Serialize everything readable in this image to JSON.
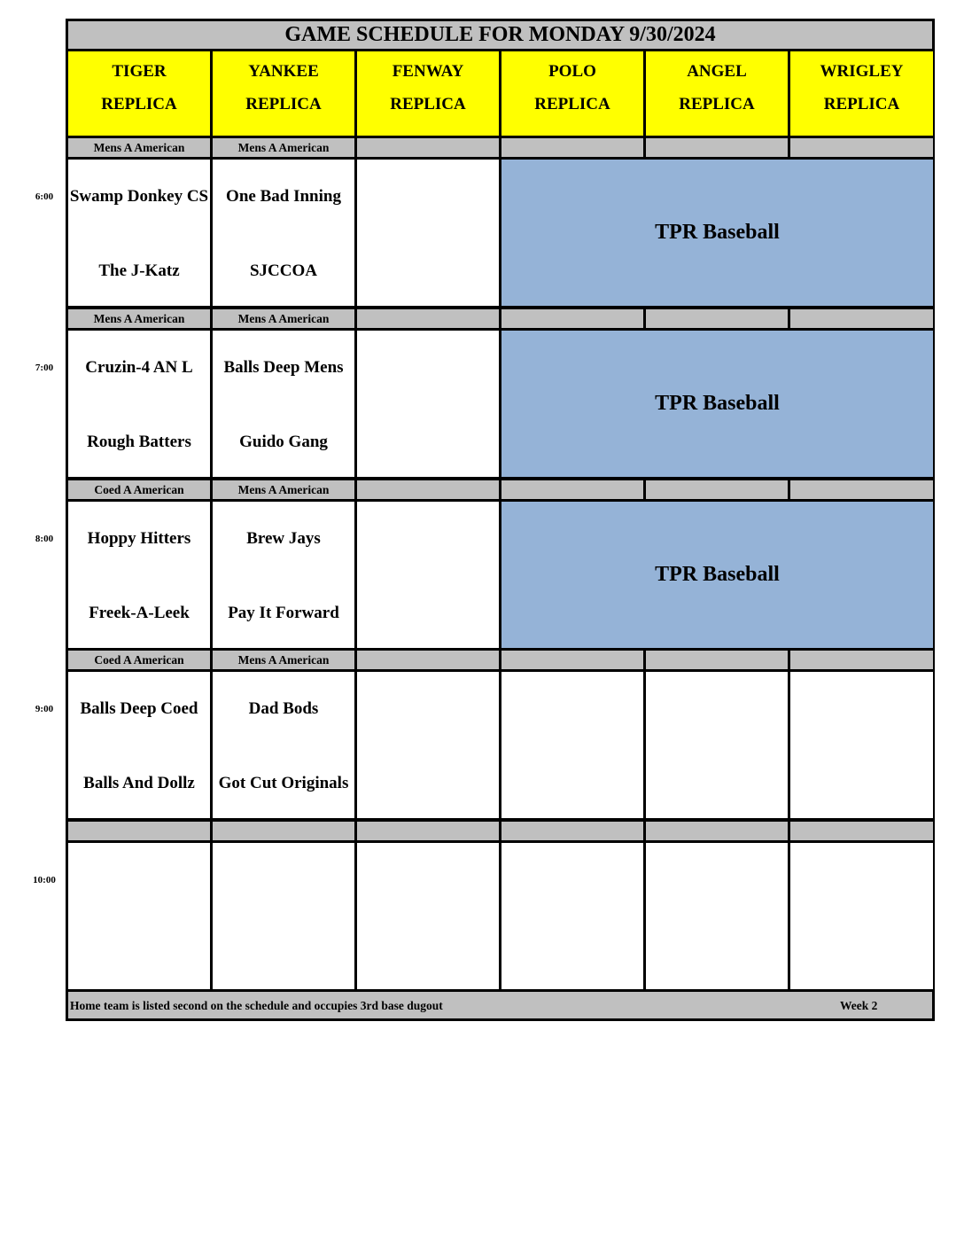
{
  "title": "GAME SCHEDULE FOR MONDAY 9/30/2024",
  "fields": [
    {
      "name": "TIGER",
      "sub": "REPLICA"
    },
    {
      "name": "YANKEE",
      "sub": "REPLICA"
    },
    {
      "name": "FENWAY",
      "sub": "REPLICA"
    },
    {
      "name": "POLO",
      "sub": "REPLICA"
    },
    {
      "name": "ANGEL",
      "sub": "REPLICA"
    },
    {
      "name": "WRIGLEY",
      "sub": "REPLICA"
    }
  ],
  "slots": [
    {
      "time": "6:00",
      "divisions": [
        "Mens A American",
        "Mens A American",
        "",
        "",
        "",
        ""
      ],
      "games": [
        {
          "away": "Swamp Donkey CS",
          "home": "The J-Katz"
        },
        {
          "away": "One Bad Inning",
          "home": "SJCCOA"
        },
        null,
        null,
        null,
        null
      ],
      "block": {
        "label": "TPR Baseball",
        "from": 3,
        "to": 5
      }
    },
    {
      "time": "7:00",
      "divisions": [
        "Mens A American",
        "Mens A American",
        "",
        "",
        "",
        ""
      ],
      "games": [
        {
          "away": "Cruzin-4 AN L",
          "home": "Rough Batters"
        },
        {
          "away": "Balls Deep Mens",
          "home": "Guido Gang"
        },
        null,
        null,
        null,
        null
      ],
      "block": {
        "label": "TPR Baseball",
        "from": 3,
        "to": 5
      }
    },
    {
      "time": "8:00",
      "divisions": [
        "Coed A American",
        "Mens A American",
        "",
        "",
        "",
        ""
      ],
      "games": [
        {
          "away": "Hoppy Hitters",
          "home": "Freek-A-Leek"
        },
        {
          "away": "Brew Jays",
          "home": "Pay It Forward"
        },
        null,
        null,
        null,
        null
      ],
      "block": {
        "label": "TPR Baseball",
        "from": 3,
        "to": 5
      }
    },
    {
      "time": "9:00",
      "divisions": [
        "Coed A American",
        "Mens A American",
        "",
        "",
        "",
        ""
      ],
      "games": [
        {
          "away": "Balls Deep Coed",
          "home": "Balls And Dollz"
        },
        {
          "away": "Dad Bods",
          "home": "Got Cut Originals"
        },
        null,
        null,
        null,
        null
      ],
      "block": null
    },
    {
      "time": "10:00",
      "divisions": [
        "",
        "",
        "",
        "",
        "",
        ""
      ],
      "games": [
        null,
        null,
        null,
        null,
        null,
        null
      ],
      "block": null
    }
  ],
  "footer": {
    "note": "Home team is listed second on the schedule and occupies 3rd base dugout",
    "week": "Week 2"
  },
  "colors": {
    "header": "#ffff00",
    "division_bar": "#c0c0c0",
    "reserved_block": "#95b3d7"
  }
}
